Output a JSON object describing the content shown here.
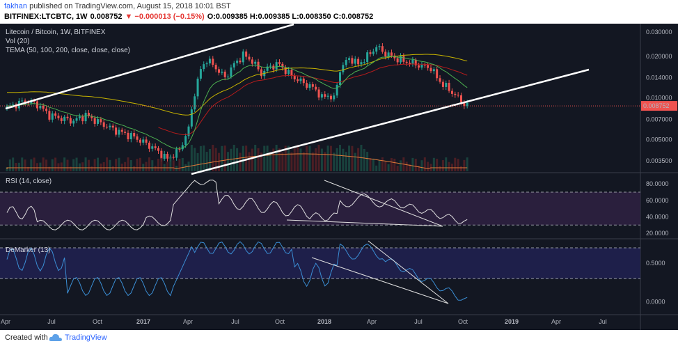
{
  "header": {
    "author": "fakhan",
    "published_text": " published on TradingView.com, August 15, 2018 10:01 BST",
    "symbol": "BITFINEX:LTCBTC, 1W",
    "last": "0.008752",
    "change": "▼ −0.000013 (−0.15%)",
    "ohlc": "O:0.009385 H:0.009385 L:0.008350 C:0.008752"
  },
  "footer": {
    "created_with": "Created with",
    "brand": "TradingView"
  },
  "chart_data": {
    "type": "candlestick",
    "title": "Litecoin / Bitcoin, 1W, BITFINEX",
    "indicator_labels": [
      "Vol (20)",
      "TEMA (50, 100, 200, close, close, close)"
    ],
    "price_axis_ticks": [
      "0.030000",
      "0.020000",
      "0.014000",
      "0.010000",
      "0.007000",
      "0.005000",
      "0.003500"
    ],
    "price_axis_values": [
      0.03,
      0.02,
      0.014,
      0.01,
      0.007,
      0.005,
      0.0035
    ],
    "price_scale": "log",
    "current_price_label": "0.008752",
    "x_axis_labels": [
      "Apr",
      "Jul",
      "Oct",
      "2017",
      "Apr",
      "Jul",
      "Oct",
      "2018",
      "Apr",
      "Jul",
      "Oct",
      "2019",
      "Apr",
      "Jul"
    ],
    "colors": {
      "up": "#26a69a",
      "down": "#ef5350",
      "background": "#131722",
      "tema_yellow": "#c8b400",
      "tema_red": "#b71c1c",
      "tema_green": "#4caf50",
      "trendline": "#ffffff"
    },
    "rsi": {
      "label": "RSI (14, close)",
      "ticks": [
        "80.0000",
        "60.0000",
        "40.0000",
        "20.0000"
      ],
      "tick_values": [
        80,
        60,
        40,
        20
      ],
      "bands": [
        70,
        30
      ]
    },
    "demarker": {
      "label": "DeMarker (13)",
      "ticks": [
        "0.5000",
        "0.0000"
      ],
      "tick_values": [
        0.5,
        0.0
      ]
    }
  }
}
